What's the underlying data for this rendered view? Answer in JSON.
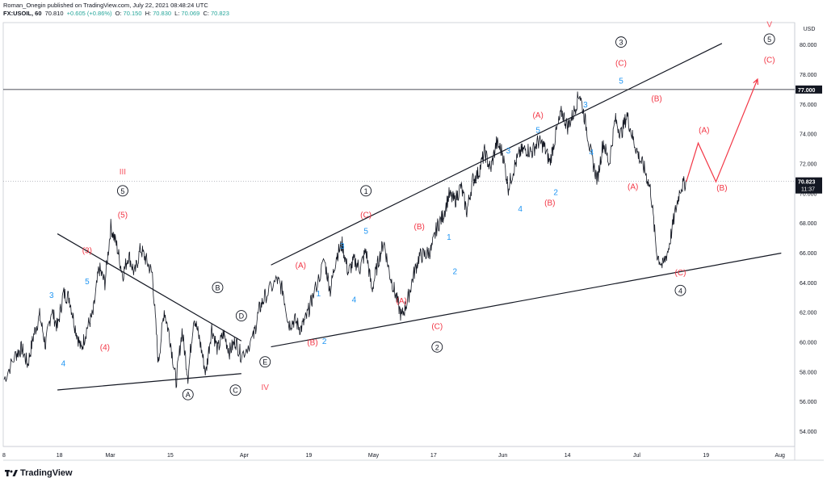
{
  "header": {
    "publisher": "Roman_Onegin published on TradingView.com, July 22, 2021 08:48:24 UTC",
    "symbol": "FX:USOIL, 60",
    "last": "70.810",
    "change": "+0.605 (+0.86%)",
    "o_label": "O:",
    "o_value": "70.150",
    "h_label": "H:",
    "h_value": "70.830",
    "l_label": "L:",
    "l_value": "70.069",
    "c_label": "C:",
    "c_value": "70.823"
  },
  "footer": {
    "brand": "TradingView"
  },
  "colors": {
    "wave_red": "#f23645",
    "wave_blue": "#2196f3",
    "wave_black": "#131722",
    "roman_orange": "#f7525f"
  },
  "chart_data": {
    "type": "line",
    "style": "candlestick",
    "currency": "USD",
    "yticks": [
      "54.000",
      "56.000",
      "58.000",
      "60.000",
      "62.000",
      "64.000",
      "66.000",
      "68.000",
      "70.000",
      "72.000",
      "74.000",
      "76.000",
      "78.000",
      "80.000"
    ],
    "ylim": [
      53,
      81.5
    ],
    "xticks": [
      "8",
      "18",
      "Mar",
      "15",
      "Apr",
      "19",
      "May",
      "17",
      "Jun",
      "14",
      "Jul",
      "19",
      "Aug"
    ],
    "price_markers": [
      {
        "label": "77.000",
        "value": 77.0,
        "kind": "line"
      },
      {
        "label": "70.823",
        "value": 70.823,
        "time": "11:37",
        "kind": "current"
      }
    ],
    "price_path": [
      [
        0,
        57.5
      ],
      [
        2,
        59.2
      ],
      [
        3,
        59.6
      ],
      [
        4,
        58.5
      ],
      [
        5,
        60.5
      ],
      [
        6,
        61.8
      ],
      [
        7,
        59.8
      ],
      [
        8,
        62.2
      ],
      [
        9,
        61.0
      ],
      [
        10,
        63.3
      ],
      [
        11,
        63.0
      ],
      [
        12,
        61.0
      ],
      [
        13,
        59.5
      ],
      [
        14,
        61.0
      ],
      [
        15,
        61.9
      ],
      [
        16,
        65.0
      ],
      [
        17,
        64.0
      ],
      [
        18,
        67.8
      ],
      [
        19,
        66.5
      ],
      [
        20,
        64.5
      ],
      [
        21,
        65.9
      ],
      [
        22,
        64.6
      ],
      [
        23,
        66.3
      ],
      [
        24,
        65.5
      ],
      [
        25,
        64.6
      ],
      [
        26,
        58.6
      ],
      [
        27,
        62.2
      ],
      [
        28,
        60.2
      ],
      [
        29,
        57.3
      ],
      [
        30,
        60.8
      ],
      [
        31,
        57.7
      ],
      [
        32,
        61.8
      ],
      [
        33,
        60.1
      ],
      [
        34,
        57.9
      ],
      [
        35,
        61.0
      ],
      [
        36,
        59.5
      ],
      [
        37,
        60.6
      ],
      [
        38,
        59.4
      ],
      [
        39,
        60.1
      ],
      [
        40,
        59.1
      ],
      [
        42,
        60.3
      ],
      [
        43,
        62.2
      ],
      [
        44,
        63.1
      ],
      [
        46,
        64.2
      ],
      [
        47,
        63.5
      ],
      [
        48,
        61.2
      ],
      [
        49,
        61.5
      ],
      [
        50,
        60.9
      ],
      [
        51,
        61.7
      ],
      [
        52,
        63.0
      ],
      [
        54,
        65.5
      ],
      [
        55,
        63.5
      ],
      [
        56,
        65.8
      ],
      [
        57,
        66.6
      ],
      [
        58,
        64.7
      ],
      [
        59,
        65.5
      ],
      [
        60,
        65.0
      ],
      [
        61,
        66.2
      ],
      [
        62,
        63.5
      ],
      [
        63,
        65.3
      ],
      [
        64,
        66.8
      ],
      [
        65,
        64.6
      ],
      [
        66,
        63.2
      ],
      [
        67,
        61.7
      ],
      [
        68,
        62.8
      ],
      [
        69,
        64.5
      ],
      [
        70,
        65.8
      ],
      [
        71,
        65.9
      ],
      [
        72,
        66.2
      ],
      [
        73,
        67.8
      ],
      [
        74,
        68.5
      ],
      [
        75,
        69.9
      ],
      [
        76,
        69.5
      ],
      [
        77,
        70.5
      ],
      [
        78,
        68.8
      ],
      [
        79,
        70.9
      ],
      [
        80,
        71.4
      ],
      [
        81,
        72.8
      ],
      [
        82,
        71.6
      ],
      [
        83,
        73.4
      ],
      [
        84,
        72.8
      ],
      [
        85,
        70.4
      ],
      [
        86,
        71.8
      ],
      [
        87,
        72.8
      ],
      [
        88,
        73.0
      ],
      [
        89,
        72.8
      ],
      [
        90,
        73.5
      ],
      [
        91,
        73.2
      ],
      [
        92,
        72.1
      ],
      [
        93,
        74.0
      ],
      [
        94,
        75.5
      ],
      [
        95,
        74.5
      ],
      [
        96,
        75.4
      ],
      [
        97,
        76.8
      ],
      [
        98,
        74.8
      ],
      [
        99,
        72.5
      ],
      [
        100,
        70.9
      ],
      [
        101,
        73.5
      ],
      [
        102,
        72.0
      ],
      [
        103,
        75.0
      ],
      [
        104,
        74.0
      ],
      [
        105,
        75.3
      ],
      [
        106,
        73.7
      ],
      [
        107,
        72.5
      ],
      [
        108,
        71.6
      ],
      [
        109,
        70.2
      ],
      [
        110,
        66.0
      ],
      [
        111,
        65.1
      ],
      [
        112,
        66.3
      ],
      [
        113,
        68.5
      ],
      [
        114,
        70.4
      ],
      [
        115,
        70.8
      ]
    ],
    "projection": [
      [
        115,
        70.8
      ],
      [
        117,
        73.4
      ],
      [
        120,
        70.8
      ],
      [
        127,
        77.7
      ]
    ],
    "trendlines": [
      {
        "from": [
          9,
          67.3
        ],
        "to": [
          40,
          60.1
        ]
      },
      {
        "from": [
          9,
          56.8
        ],
        "to": [
          40,
          57.9
        ]
      },
      {
        "from": [
          45,
          65.2
        ],
        "to": [
          121,
          80.1
        ]
      },
      {
        "from": [
          45,
          59.7
        ],
        "to": [
          131,
          66.0
        ]
      }
    ],
    "wave_labels": [
      {
        "text": "3",
        "x": 8,
        "y": 63.0,
        "color": "blue"
      },
      {
        "text": "4",
        "x": 10,
        "y": 58.4,
        "color": "blue"
      },
      {
        "text": "5",
        "x": 14,
        "y": 63.9,
        "color": "blue"
      },
      {
        "text": "(3)",
        "x": 14,
        "y": 66.0,
        "color": "red"
      },
      {
        "text": "(4)",
        "x": 17,
        "y": 59.5,
        "color": "red"
      },
      {
        "text": "(5)",
        "x": 20,
        "y": 68.4,
        "color": "red"
      },
      {
        "text": "5",
        "x": 20,
        "y": 70.0,
        "color": "black",
        "circled": true
      },
      {
        "text": "III",
        "x": 20,
        "y": 71.3,
        "color": "orange"
      },
      {
        "text": "A",
        "x": 31,
        "y": 56.3,
        "color": "black",
        "circled": true
      },
      {
        "text": "B",
        "x": 36,
        "y": 63.5,
        "color": "black",
        "circled": true
      },
      {
        "text": "C",
        "x": 39,
        "y": 56.6,
        "color": "black",
        "circled": true
      },
      {
        "text": "D",
        "x": 40,
        "y": 61.6,
        "color": "black",
        "circled": true
      },
      {
        "text": "E",
        "x": 44,
        "y": 58.5,
        "color": "black",
        "circled": true
      },
      {
        "text": "IV",
        "x": 44,
        "y": 56.8,
        "color": "orange"
      },
      {
        "text": "(A)",
        "x": 50,
        "y": 65.0,
        "color": "red"
      },
      {
        "text": "(B)",
        "x": 52,
        "y": 59.8,
        "color": "red"
      },
      {
        "text": "1",
        "x": 53,
        "y": 63.1,
        "color": "blue"
      },
      {
        "text": "2",
        "x": 54,
        "y": 59.9,
        "color": "blue"
      },
      {
        "text": "3",
        "x": 57,
        "y": 66.3,
        "color": "blue"
      },
      {
        "text": "4",
        "x": 59,
        "y": 62.7,
        "color": "blue"
      },
      {
        "text": "5",
        "x": 61,
        "y": 67.3,
        "color": "blue"
      },
      {
        "text": "(C)",
        "x": 61,
        "y": 68.4,
        "color": "red"
      },
      {
        "text": "1",
        "x": 61,
        "y": 70.0,
        "color": "black",
        "circled": true
      },
      {
        "text": "(A)",
        "x": 67,
        "y": 62.6,
        "color": "red"
      },
      {
        "text": "(B)",
        "x": 70,
        "y": 67.6,
        "color": "red"
      },
      {
        "text": "(C)",
        "x": 73,
        "y": 60.9,
        "color": "red"
      },
      {
        "text": "2",
        "x": 73,
        "y": 59.5,
        "color": "black",
        "circled": true
      },
      {
        "text": "1",
        "x": 75,
        "y": 66.9,
        "color": "blue"
      },
      {
        "text": "2",
        "x": 76,
        "y": 64.6,
        "color": "blue"
      },
      {
        "text": "3",
        "x": 85,
        "y": 72.7,
        "color": "blue"
      },
      {
        "text": "4",
        "x": 87,
        "y": 68.8,
        "color": "blue"
      },
      {
        "text": "5",
        "x": 90,
        "y": 74.1,
        "color": "blue"
      },
      {
        "text": "(A)",
        "x": 90,
        "y": 75.1,
        "color": "red"
      },
      {
        "text": "2",
        "x": 93,
        "y": 69.9,
        "color": "blue"
      },
      {
        "text": "(B)",
        "x": 92,
        "y": 69.2,
        "color": "red"
      },
      {
        "text": "3",
        "x": 98,
        "y": 75.8,
        "color": "blue"
      },
      {
        "text": "4",
        "x": 99,
        "y": 72.6,
        "color": "blue"
      },
      {
        "text": "5",
        "x": 104,
        "y": 77.4,
        "color": "blue"
      },
      {
        "text": "(C)",
        "x": 104,
        "y": 78.6,
        "color": "red"
      },
      {
        "text": "3",
        "x": 104,
        "y": 80.0,
        "color": "black",
        "circled": true
      },
      {
        "text": "(B)",
        "x": 110,
        "y": 76.2,
        "color": "red"
      },
      {
        "text": "(A)",
        "x": 106,
        "y": 70.3,
        "color": "red"
      },
      {
        "text": "(C)",
        "x": 114,
        "y": 64.5,
        "color": "red"
      },
      {
        "text": "4",
        "x": 114,
        "y": 63.3,
        "color": "black",
        "circled": true
      },
      {
        "text": "(A)",
        "x": 118,
        "y": 74.1,
        "color": "red"
      },
      {
        "text": "(B)",
        "x": 121,
        "y": 70.2,
        "color": "red"
      },
      {
        "text": "V",
        "x": 129,
        "y": 81.2,
        "color": "orange"
      },
      {
        "text": "5",
        "x": 129,
        "y": 80.2,
        "color": "black",
        "circled": true
      },
      {
        "text": "(C)",
        "x": 129,
        "y": 78.8,
        "color": "red"
      }
    ]
  }
}
